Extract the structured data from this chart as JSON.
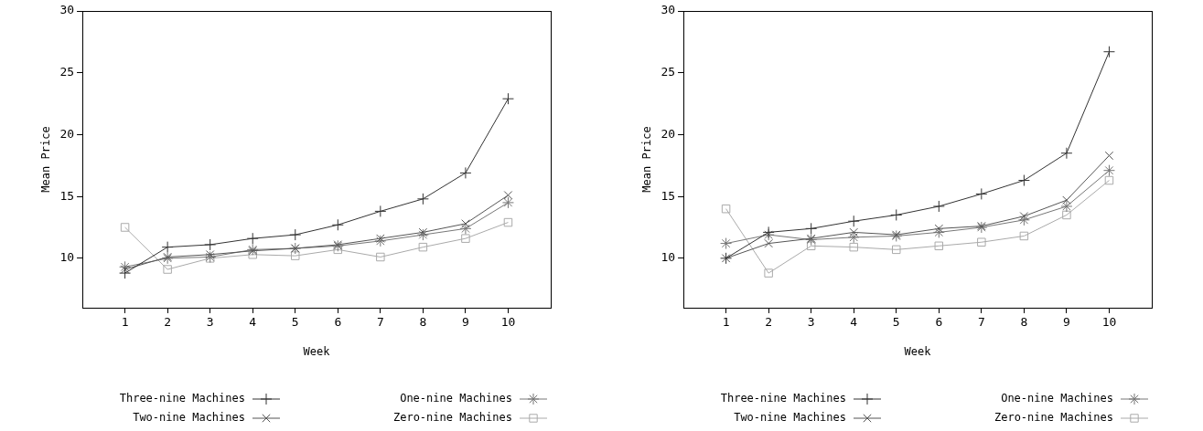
{
  "chart_data": [
    {
      "type": "line",
      "xlabel": "Week",
      "ylabel": "Mean Price",
      "x": [
        1,
        2,
        3,
        4,
        5,
        6,
        7,
        8,
        9,
        10
      ],
      "xlim": [
        0,
        11
      ],
      "xticks": [
        1,
        2,
        3,
        4,
        5,
        6,
        7,
        8,
        9,
        10
      ],
      "ylim": [
        6,
        30
      ],
      "yticks": [
        10,
        15,
        20,
        25,
        30
      ],
      "grid": false,
      "legend": "bottom",
      "series": [
        {
          "name": "Three-nine Machines",
          "color": "#333333",
          "marker": "plus",
          "values": [
            8.8,
            10.9,
            11.1,
            11.6,
            11.9,
            12.7,
            13.8,
            14.8,
            16.9,
            22.9
          ]
        },
        {
          "name": "Two-nine Machines",
          "color": "#555555",
          "marker": "x",
          "values": [
            9.1,
            10.1,
            10.3,
            10.6,
            10.8,
            11.1,
            11.6,
            12.1,
            12.8,
            15.1
          ]
        },
        {
          "name": "One-nine Machines",
          "color": "#777777",
          "marker": "cross",
          "values": [
            9.3,
            10.0,
            10.1,
            10.7,
            10.8,
            11.0,
            11.4,
            11.9,
            12.4,
            14.5
          ]
        },
        {
          "name": "Zero-nine Machines",
          "color": "#aaaaaa",
          "marker": "square",
          "values": [
            12.5,
            9.1,
            10.0,
            10.3,
            10.2,
            10.7,
            10.1,
            10.9,
            11.6,
            12.9
          ]
        }
      ]
    },
    {
      "type": "line",
      "xlabel": "Week",
      "ylabel": "Mean Price",
      "x": [
        1,
        2,
        3,
        4,
        5,
        6,
        7,
        8,
        9,
        10
      ],
      "xlim": [
        0,
        11
      ],
      "xticks": [
        1,
        2,
        3,
        4,
        5,
        6,
        7,
        8,
        9,
        10
      ],
      "ylim": [
        6,
        30
      ],
      "yticks": [
        10,
        15,
        20,
        25,
        30
      ],
      "grid": false,
      "legend": "bottom",
      "series": [
        {
          "name": "Three-nine Machines",
          "color": "#333333",
          "marker": "plus",
          "values": [
            10.0,
            12.1,
            12.4,
            13.0,
            13.5,
            14.2,
            15.2,
            16.3,
            18.5,
            26.7
          ]
        },
        {
          "name": "Two-nine Machines",
          "color": "#555555",
          "marker": "x",
          "values": [
            10.0,
            11.2,
            11.6,
            12.1,
            11.9,
            12.4,
            12.6,
            13.4,
            14.7,
            18.3
          ]
        },
        {
          "name": "One-nine Machines",
          "color": "#777777",
          "marker": "cross",
          "values": [
            11.2,
            11.9,
            11.5,
            11.7,
            11.8,
            12.1,
            12.5,
            13.1,
            14.2,
            17.1
          ]
        },
        {
          "name": "Zero-nine Machines",
          "color": "#aaaaaa",
          "marker": "square",
          "values": [
            14.0,
            8.8,
            11.0,
            10.9,
            10.7,
            11.0,
            11.3,
            11.8,
            13.5,
            16.3
          ]
        }
      ]
    }
  ]
}
